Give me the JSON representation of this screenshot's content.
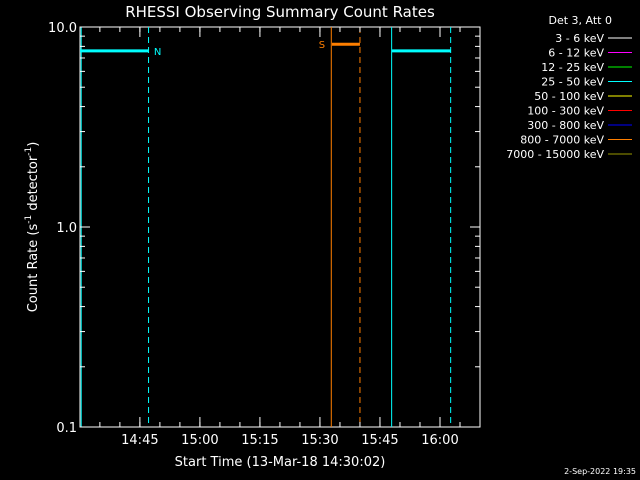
{
  "chart_data": {
    "type": "line",
    "title": "RHESSI Observing Summary Count Rates",
    "xlabel": "Start Time (13-Mar-18 14:30:02)",
    "ylabel_main": "Count Rate (s",
    "ylabel_sup1": "-1",
    "ylabel_mid": " detector",
    "ylabel_sup2": "-1",
    "ylabel_end": ")",
    "y_scale": "log",
    "ylim": [
      0.1,
      10.0
    ],
    "xlim": [
      "14:30:02",
      "16:10:00"
    ],
    "x_ticks": [
      "14:45",
      "15:00",
      "15:15",
      "15:30",
      "15:45",
      "16:00"
    ],
    "y_ticks": [
      "0.1",
      "1.0",
      "10.0"
    ],
    "grid": false,
    "legend_position": "top-right, outside plot",
    "legend_title": "Det 3, Att 0",
    "series": [
      {
        "name": "3 - 6 keV",
        "color": "#ffffff",
        "values": []
      },
      {
        "name": "6 - 12 keV",
        "color": "#ff00ff",
        "values": []
      },
      {
        "name": "12 - 25 keV",
        "color": "#00ff00",
        "values": []
      },
      {
        "name": "25 - 50 keV",
        "color": "#00ffff",
        "values": [
          {
            "x": "14:30:02",
            "y": 7.6
          },
          {
            "x": "14:47:10",
            "y": 7.6
          },
          {
            "x": "15:48:00",
            "y": 7.6
          },
          {
            "x": "16:02:40",
            "y": 7.6
          }
        ]
      },
      {
        "name": "50 - 100 keV",
        "color": "#ffff00",
        "values": []
      },
      {
        "name": "100 - 300 keV",
        "color": "#ff0000",
        "values": []
      },
      {
        "name": "300 - 800 keV",
        "color": "#0000ff",
        "values": []
      },
      {
        "name": "800 - 7000 keV",
        "color": "#ff7f00",
        "values": [
          {
            "x": "15:33:00",
            "y": 8.2
          },
          {
            "x": "15:40:00",
            "y": 8.2
          }
        ]
      },
      {
        "name": "7000 - 15000 keV",
        "color": "#999900",
        "values": []
      }
    ],
    "segments": [
      {
        "color": "#00ffff",
        "from": "14:30:02",
        "to": "14:47:10",
        "y": 7.6
      },
      {
        "color": "#00ffff",
        "from": "15:48:00",
        "to": "16:02:40",
        "y": 7.6
      },
      {
        "color": "#ff7f00",
        "from": "15:33:00",
        "to": "15:40:00",
        "y": 8.2
      }
    ],
    "vlines": [
      {
        "x": "14:30:20",
        "color": "#00ffff",
        "style": "solid"
      },
      {
        "x": "14:47:10",
        "color": "#00ffff",
        "style": "dashed"
      },
      {
        "x": "15:32:50",
        "color": "#ff7f00",
        "style": "solid"
      },
      {
        "x": "15:40:00",
        "color": "#ff7f00",
        "style": "dashed"
      },
      {
        "x": "15:47:55",
        "color": "#00ffff",
        "style": "solid"
      },
      {
        "x": "16:02:40",
        "color": "#00ffff",
        "style": "dashed"
      }
    ],
    "annotations": [
      {
        "text": "N",
        "x": "14:47:10",
        "y": 7.6,
        "color": "#00ffff"
      },
      {
        "text": "S",
        "x": "15:33:00",
        "y": 8.2,
        "color": "#ff7f00"
      }
    ]
  },
  "footer": {
    "timestamp": "2-Sep-2022 19:35"
  }
}
